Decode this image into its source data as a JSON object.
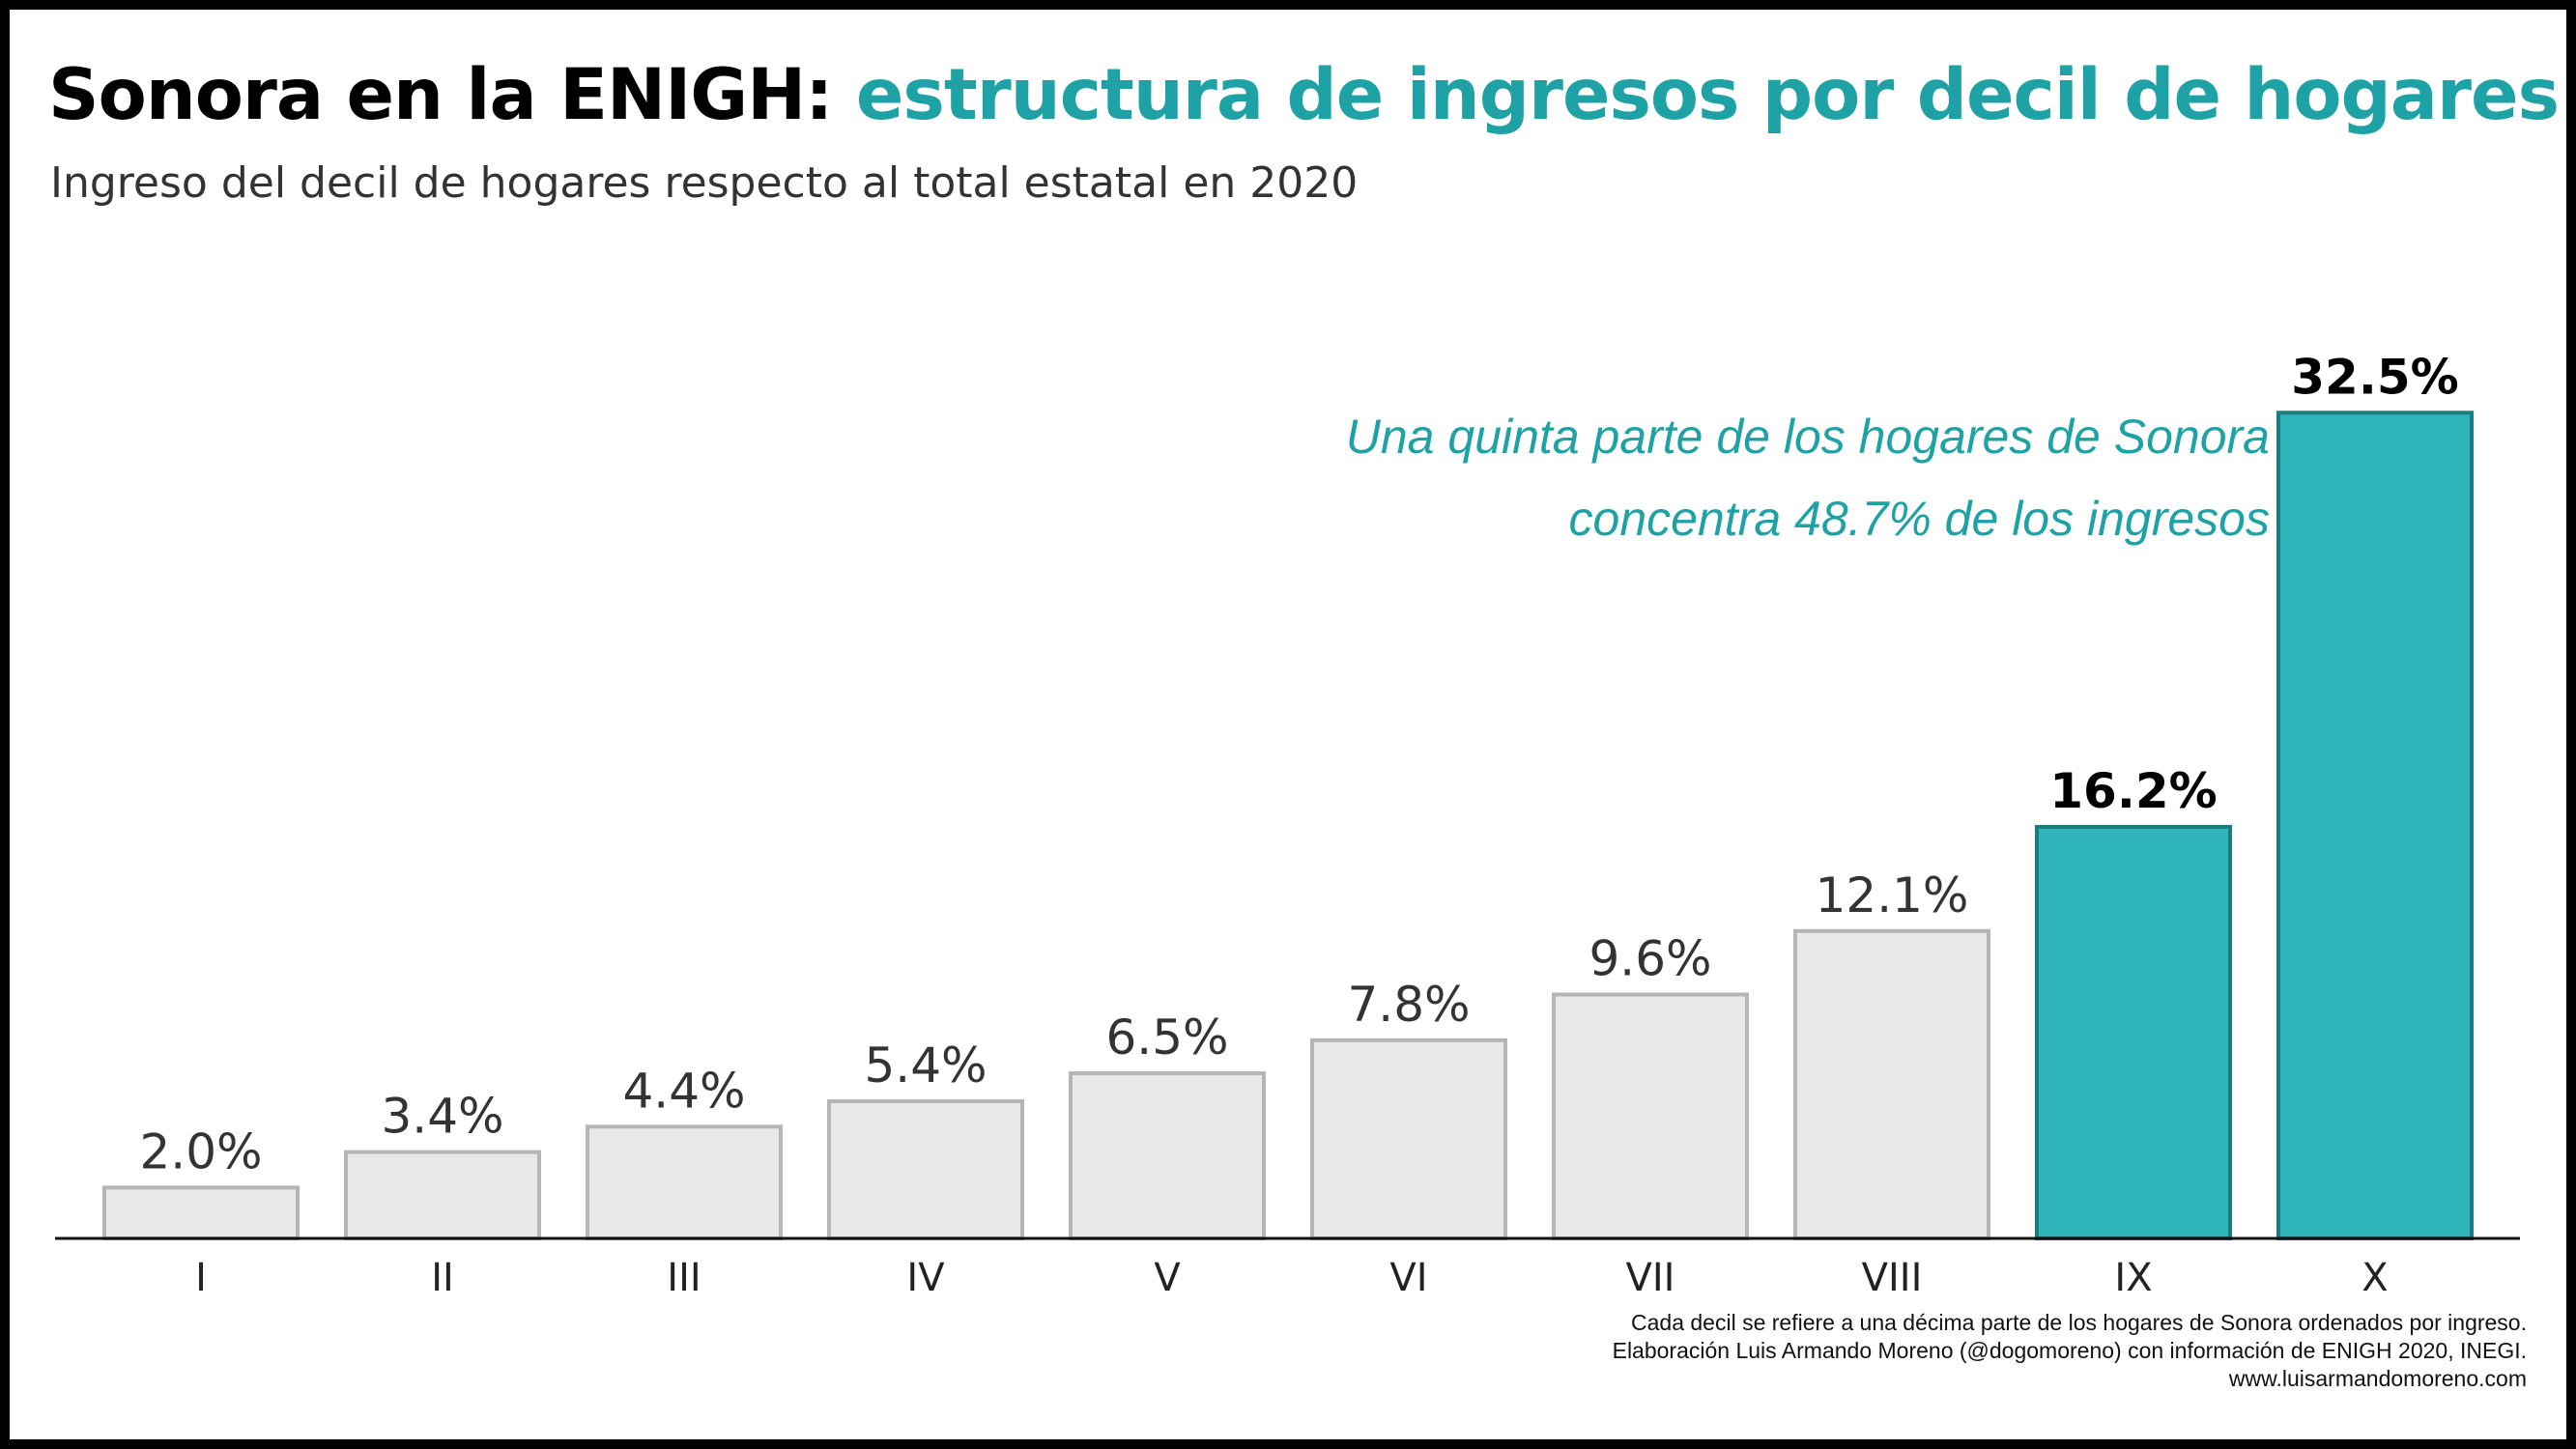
{
  "title": {
    "part1": "Sonora en la ENIGH:",
    "part2": "estructura de ingresos por decil de hogares"
  },
  "subtitle": "Ingreso del decil de hogares respecto al total estatal en 2020",
  "annotation": {
    "line1": "Una quinta parte de los hogares de Sonora",
    "line2": "concentra 48.7% de los ingresos"
  },
  "footer": {
    "line1": "Cada decil se refiere a una décima parte de los hogares de Sonora ordenados por ingreso.",
    "line2": "Elaboración Luis Armando Moreno (@dogomoreno) con información de ENIGH 2020, INEGI.",
    "line3": "www.luisarmandomoreno.com"
  },
  "colors": {
    "accent": "#1fa2a6",
    "highlight_bar": "#2fb4b9",
    "highlight_border": "#1a7c7f",
    "default_bar": "#e8e8e8",
    "default_border": "#b5b5b5"
  },
  "chart_data": {
    "type": "bar",
    "title": "Sonora en la ENIGH: estructura de ingresos por decil de hogares",
    "subtitle": "Ingreso del decil de hogares respecto al total estatal en 2020",
    "xlabel": "",
    "ylabel": "",
    "categories": [
      "I",
      "II",
      "III",
      "IV",
      "V",
      "VI",
      "VII",
      "VIII",
      "IX",
      "X"
    ],
    "values": [
      2.0,
      3.4,
      4.4,
      5.4,
      6.5,
      7.8,
      9.6,
      12.1,
      16.2,
      32.5
    ],
    "labels": [
      "2.0%",
      "3.4%",
      "4.4%",
      "5.4%",
      "6.5%",
      "7.8%",
      "9.6%",
      "12.1%",
      "16.2%",
      "32.5%"
    ],
    "highlighted": [
      "IX",
      "X"
    ],
    "ylim": [
      0,
      35
    ],
    "grid": false,
    "legend": "none"
  }
}
